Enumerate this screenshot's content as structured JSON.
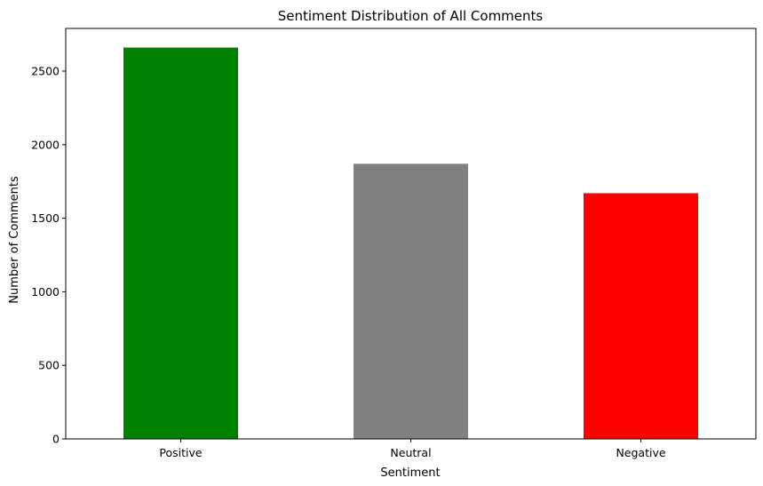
{
  "chart_data": {
    "type": "bar",
    "title": "Sentiment Distribution of All Comments",
    "xlabel": "Sentiment",
    "ylabel": "Number of Comments",
    "categories": [
      "Positive",
      "Neutral",
      "Negative"
    ],
    "values": [
      2660,
      1870,
      1670
    ],
    "colors": [
      "#008000",
      "#808080",
      "#ff0000"
    ],
    "ylim": [
      0,
      2790
    ],
    "yticks": [
      0,
      500,
      1000,
      1500,
      2000,
      2500
    ],
    "grid": false,
    "legend": "none"
  }
}
